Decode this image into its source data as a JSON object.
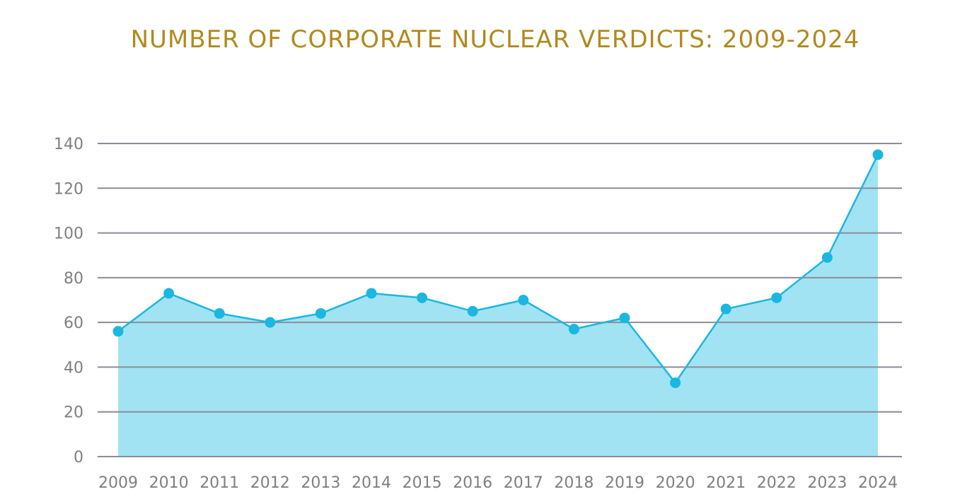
{
  "chart_data": {
    "type": "area",
    "title": "NUMBER OF CORPORATE NUCLEAR VERDICTS: 2009-2024",
    "xlabel": "",
    "ylabel": "",
    "categories": [
      "2009",
      "2010",
      "2011",
      "2012",
      "2013",
      "2014",
      "2015",
      "2016",
      "2017",
      "2018",
      "2019",
      "2020",
      "2021",
      "2022",
      "2023",
      "2024"
    ],
    "series": [
      {
        "values": [
          56,
          73,
          64,
          60,
          64,
          73,
          71,
          65,
          70,
          57,
          62,
          33,
          66,
          71,
          89,
          135
        ]
      }
    ],
    "ylim": [
      0,
      140
    ],
    "yticks": [
      "0",
      "20",
      "40",
      "60",
      "80",
      "100",
      "120",
      "140"
    ],
    "grid": true,
    "legend": "none",
    "colors": {
      "line": "#1ab7e0",
      "area": "#a2e3f3",
      "grid": "#8c8c9a",
      "title": "#b08a1e",
      "tick_label": "#7f7f7f"
    }
  }
}
